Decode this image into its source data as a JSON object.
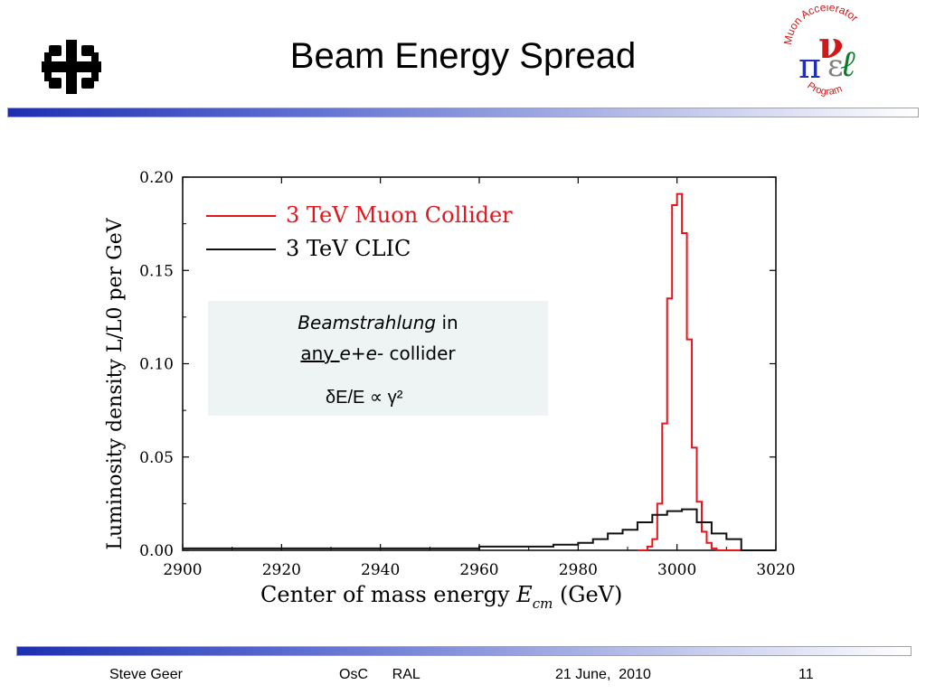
{
  "slide": {
    "title": "Beam Energy Spread",
    "right_logo": {
      "top_text": "Muon Accelerator",
      "bottom_text": "Program"
    }
  },
  "annotation": {
    "word1": "Beamstrahlung",
    "word2": " in",
    "any": "any ",
    "epem": " e+e-",
    "collider": " collider",
    "formula": "δE/E ∝ γ²"
  },
  "footer": {
    "author": "Steve Geer",
    "event": "OsC      RAL",
    "date": "21 June,  2010",
    "page": "11"
  },
  "chart_data": {
    "type": "line",
    "style": "step",
    "xlabel": "Center of mass energy",
    "xlabel_symbol": "E",
    "xlabel_sub": "cm",
    "xlabel_unit": "(GeV)",
    "ylabel": "Luminosity density L/L0 per GeV",
    "xlim": [
      2900,
      3020
    ],
    "ylim": [
      0,
      0.2
    ],
    "x_ticks": [
      2900,
      2920,
      2940,
      2960,
      2980,
      3000,
      3020
    ],
    "y_ticks": [
      "0.00",
      "0.05",
      "0.10",
      "0.15",
      "0.20"
    ],
    "legend_position": "top-left",
    "series": [
      {
        "name": "3 TeV Muon Collider",
        "color": "#e8141c",
        "x": [
          2992,
          2994,
          2995,
          2996,
          2997,
          2998,
          2999,
          3000,
          3001,
          3002,
          3003,
          3004,
          3005,
          3006,
          3007,
          3008,
          3020
        ],
        "y": [
          0.0,
          0.002,
          0.006,
          0.025,
          0.068,
          0.135,
          0.185,
          0.191,
          0.17,
          0.113,
          0.055,
          0.026,
          0.01,
          0.004,
          0.001,
          0.0,
          0.0
        ]
      },
      {
        "name": "3 TeV CLIC",
        "color": "#111111",
        "x": [
          2900,
          2960,
          2975,
          2980,
          2983,
          2986,
          2989,
          2992,
          2995,
          2998,
          3001,
          3004,
          3007,
          3010,
          3013,
          3020
        ],
        "y": [
          0.001,
          0.002,
          0.003,
          0.004,
          0.006,
          0.009,
          0.011,
          0.015,
          0.019,
          0.021,
          0.022,
          0.015,
          0.009,
          0.006,
          0.0,
          0.0
        ]
      }
    ]
  }
}
